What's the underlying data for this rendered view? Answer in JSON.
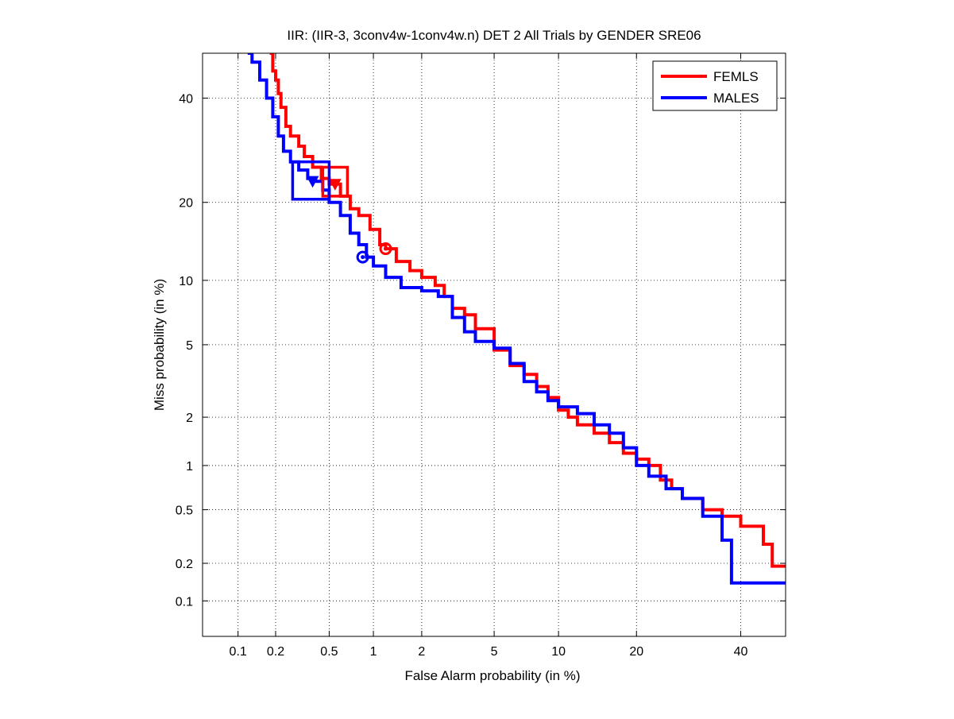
{
  "chart_data": {
    "type": "line",
    "scale": "normal-deviate (DET)",
    "title": "IIR: (IIR-3, 3conv4w-1conv4w.n) DET 2 All Trials by GENDER SRE06",
    "xlabel": "False Alarm probability (in %)",
    "ylabel": "Miss probability (in %)",
    "xlim": [
      0.05,
      50
    ],
    "ylim": [
      0.05,
      50
    ],
    "grid": true,
    "legend_position": "top-right",
    "x_ticks": [
      {
        "value": 0.1,
        "label": "0.1"
      },
      {
        "value": 0.2,
        "label": "0.2"
      },
      {
        "value": 0.5,
        "label": "0.5"
      },
      {
        "value": 1,
        "label": "1"
      },
      {
        "value": 2,
        "label": "2"
      },
      {
        "value": 5,
        "label": "5"
      },
      {
        "value": 10,
        "label": "10"
      },
      {
        "value": 20,
        "label": "20"
      },
      {
        "value": 40,
        "label": "40"
      }
    ],
    "y_ticks": [
      {
        "value": 0.1,
        "label": "0.1"
      },
      {
        "value": 0.2,
        "label": "0.2"
      },
      {
        "value": 0.5,
        "label": "0.5"
      },
      {
        "value": 1,
        "label": "1"
      },
      {
        "value": 2,
        "label": "2"
      },
      {
        "value": 5,
        "label": "5"
      },
      {
        "value": 10,
        "label": "10"
      },
      {
        "value": 20,
        "label": "20"
      },
      {
        "value": 40,
        "label": "40"
      }
    ],
    "series": [
      {
        "name": "FEMLS",
        "color": "#ff0000",
        "points": [
          [
            0.18,
            50
          ],
          [
            0.19,
            46
          ],
          [
            0.2,
            44
          ],
          [
            0.21,
            41
          ],
          [
            0.22,
            38
          ],
          [
            0.24,
            34
          ],
          [
            0.26,
            32
          ],
          [
            0.3,
            30
          ],
          [
            0.33,
            28
          ],
          [
            0.38,
            26
          ],
          [
            0.44,
            24
          ],
          [
            0.5,
            23
          ],
          [
            0.6,
            21
          ],
          [
            0.7,
            19
          ],
          [
            0.8,
            18
          ],
          [
            0.95,
            16
          ],
          [
            1.1,
            14
          ],
          [
            1.2,
            13.5
          ],
          [
            1.4,
            12
          ],
          [
            1.7,
            11
          ],
          [
            2.0,
            10.3
          ],
          [
            2.4,
            9.5
          ],
          [
            2.7,
            8.5
          ],
          [
            3.0,
            7.5
          ],
          [
            3.5,
            7.0
          ],
          [
            4.0,
            6.0
          ],
          [
            5.0,
            4.7
          ],
          [
            6.0,
            3.9
          ],
          [
            7.0,
            3.5
          ],
          [
            8.0,
            3.0
          ],
          [
            9.0,
            2.6
          ],
          [
            10.0,
            2.2
          ],
          [
            11.0,
            2.0
          ],
          [
            12.0,
            1.8
          ],
          [
            14.0,
            1.6
          ],
          [
            16.0,
            1.4
          ],
          [
            18.0,
            1.2
          ],
          [
            20.0,
            1.1
          ],
          [
            22.0,
            1.0
          ],
          [
            24.0,
            0.8
          ],
          [
            26.0,
            0.7
          ],
          [
            28.0,
            0.6
          ],
          [
            32.0,
            0.5
          ],
          [
            36.0,
            0.45
          ],
          [
            40.0,
            0.38
          ],
          [
            45.0,
            0.28
          ],
          [
            47.0,
            0.19
          ],
          [
            50.0,
            0.19
          ]
        ],
        "actual_decision_point": [
          0.55,
          23
        ],
        "min_dcf_point": [
          1.2,
          13.5
        ],
        "confidence_box": {
          "x_range": [
            0.45,
            0.67
          ],
          "y_range": [
            21,
            26
          ]
        }
      },
      {
        "name": "MALES",
        "color": "#0000ff",
        "points": [
          [
            0.12,
            50
          ],
          [
            0.13,
            48
          ],
          [
            0.15,
            44
          ],
          [
            0.17,
            40
          ],
          [
            0.19,
            36
          ],
          [
            0.21,
            32
          ],
          [
            0.23,
            29
          ],
          [
            0.26,
            27
          ],
          [
            0.3,
            25.5
          ],
          [
            0.35,
            24
          ],
          [
            0.4,
            23.5
          ],
          [
            0.45,
            22
          ],
          [
            0.5,
            20
          ],
          [
            0.6,
            18
          ],
          [
            0.7,
            15.5
          ],
          [
            0.8,
            14
          ],
          [
            0.9,
            12.5
          ],
          [
            1.0,
            11.5
          ],
          [
            1.2,
            10.3
          ],
          [
            1.5,
            9.3
          ],
          [
            2.0,
            9.0
          ],
          [
            2.5,
            8.5
          ],
          [
            3.0,
            6.8
          ],
          [
            3.5,
            5.8
          ],
          [
            4.0,
            5.2
          ],
          [
            5.0,
            4.8
          ],
          [
            6.0,
            4.0
          ],
          [
            7.0,
            3.2
          ],
          [
            8.0,
            2.8
          ],
          [
            9.0,
            2.5
          ],
          [
            10.0,
            2.3
          ],
          [
            12.0,
            2.1
          ],
          [
            14.0,
            1.8
          ],
          [
            16.0,
            1.6
          ],
          [
            18.0,
            1.3
          ],
          [
            20.0,
            1.0
          ],
          [
            22.0,
            0.85
          ],
          [
            25.0,
            0.7
          ],
          [
            28.0,
            0.6
          ],
          [
            32.0,
            0.45
          ],
          [
            36.0,
            0.3
          ],
          [
            38.0,
            0.14
          ],
          [
            50.0,
            0.14
          ]
        ],
        "actual_decision_point": [
          0.38,
          23.5
        ],
        "min_dcf_point": [
          0.85,
          12.5
        ],
        "confidence_box": {
          "x_range": [
            0.27,
            0.5
          ],
          "y_range": [
            20.5,
            27
          ]
        }
      }
    ]
  }
}
